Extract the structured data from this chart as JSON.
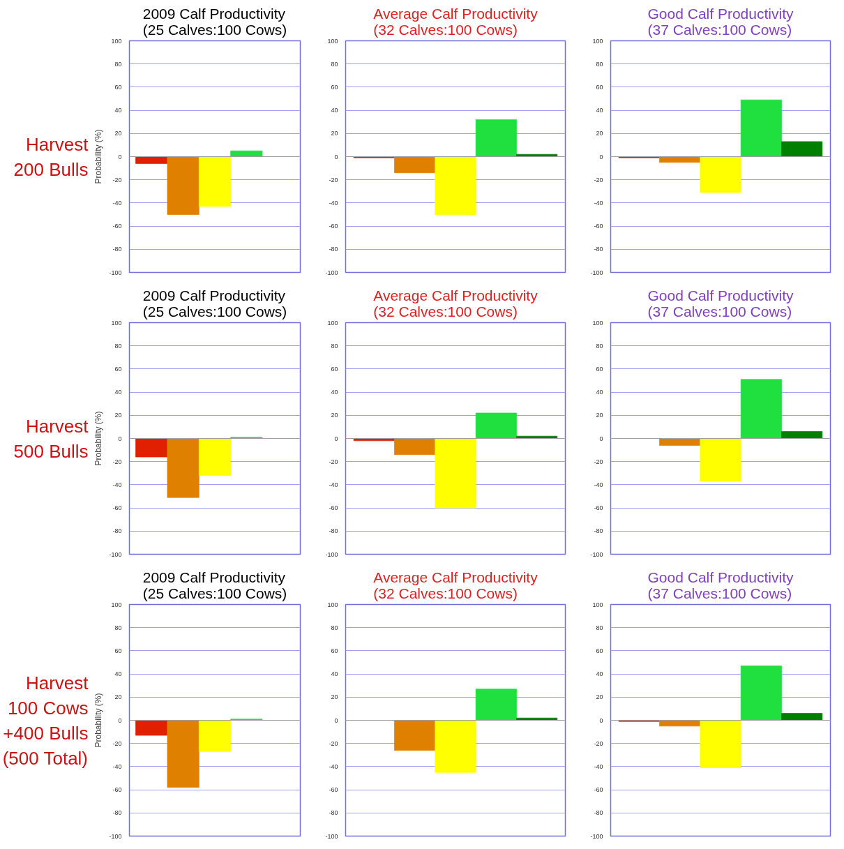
{
  "chart_data": [
    {
      "type": "bar",
      "title": "2009 Calf Productivity\n(25 Calves:100 Cows)",
      "ylabel": "Probability (%)",
      "annotations": [
        "Harvest\n200 Bulls"
      ],
      "categories": [
        null,
        null,
        null,
        null,
        null
      ],
      "values": [
        -6,
        -50,
        -43,
        5,
        0
      ],
      "colors": [
        "#e02000",
        "#e08000",
        "#ffff00",
        "#20e040",
        "#008000"
      ],
      "ylim": [
        -100,
        100
      ],
      "yticks": [
        -100,
        -80,
        -60,
        -40,
        -20,
        0,
        20,
        40,
        60,
        80,
        100
      ],
      "grid": "y",
      "tick_labels": "y",
      "ref_lines": [
        {
          "axis": "y",
          "value": 0,
          "color": "#a0a0a0"
        }
      ]
    },
    {
      "type": "bar",
      "title": "2009 Calf Productivity\n(25 Calves:100 Cows)",
      "ylabel": "Probability (%)",
      "annotations": [
        "Harvest\n500 Bulls"
      ],
      "categories": [
        null,
        null,
        null,
        null,
        null
      ],
      "values": [
        -16,
        -51,
        -32,
        1,
        0
      ],
      "colors": [
        "#e02000",
        "#e08000",
        "#ffff00",
        "#20e040",
        "#008000"
      ],
      "ylim": [
        -100,
        100
      ],
      "yticks": [
        -100,
        -80,
        -60,
        -40,
        -20,
        0,
        20,
        40,
        60,
        80,
        100
      ],
      "grid": "y",
      "tick_labels": "y",
      "ref_lines": [
        {
          "axis": "y",
          "value": 0,
          "color": "#a0a0a0"
        }
      ]
    },
    {
      "type": "bar",
      "title": "2009 Calf Productivity\n(25 Calves:100 Cows)",
      "ylabel": "Probability (%)",
      "annotations": [
        "Harvest\n100 Cows\n+400 Bulls\n(500 Total)"
      ],
      "categories": [
        null,
        null,
        null,
        null,
        null
      ],
      "values": [
        -13,
        -58,
        -27,
        1,
        0
      ],
      "colors": [
        "#e02000",
        "#e08000",
        "#ffff00",
        "#20e040",
        "#008000"
      ],
      "ylim": [
        -100,
        100
      ],
      "yticks": [
        -100,
        -80,
        -60,
        -40,
        -20,
        0,
        20,
        40,
        60,
        80,
        100
      ],
      "grid": "y",
      "tick_labels": "y",
      "ref_lines": [
        {
          "axis": "y",
          "value": 0,
          "color": "#a0a0a0"
        }
      ]
    },
    {
      "type": "bar",
      "title": "Average Calf Productivity\n(32 Calves:100 Cows)",
      "categories": [
        null,
        null,
        null,
        null,
        null
      ],
      "values": [
        -1,
        -14,
        -50,
        32,
        2
      ],
      "colors": [
        "#e02000",
        "#e08000",
        "#ffff00",
        "#20e040",
        "#008000"
      ],
      "ylim": [
        -100,
        100
      ],
      "yticks": [
        -100,
        -80,
        -60,
        -40,
        -20,
        0,
        20,
        40,
        60,
        80,
        100
      ],
      "grid": "y",
      "tick_labels": "y",
      "ref_lines": [
        {
          "axis": "y",
          "value": 0,
          "color": "#a0a0a0"
        }
      ]
    },
    {
      "type": "bar",
      "title": "Average Calf Productivity\n(32 Calves:100 Cows)",
      "categories": [
        null,
        null,
        null,
        null,
        null
      ],
      "values": [
        -2,
        -14,
        -60,
        22,
        2
      ],
      "colors": [
        "#e02000",
        "#e08000",
        "#ffff00",
        "#20e040",
        "#008000"
      ],
      "ylim": [
        -100,
        100
      ],
      "yticks": [
        -100,
        -80,
        -60,
        -40,
        -20,
        0,
        20,
        40,
        60,
        80,
        100
      ],
      "grid": "y",
      "tick_labels": "y",
      "ref_lines": [
        {
          "axis": "y",
          "value": 0,
          "color": "#a0a0a0"
        }
      ]
    },
    {
      "type": "bar",
      "title": "Average Calf Productivity\n(32 Calves:100 Cows)",
      "categories": [
        null,
        null,
        null,
        null,
        null
      ],
      "values": [
        0,
        -26,
        -45,
        27,
        2
      ],
      "colors": [
        "#e02000",
        "#e08000",
        "#ffff00",
        "#20e040",
        "#008000"
      ],
      "ylim": [
        -100,
        100
      ],
      "yticks": [
        -100,
        -80,
        -60,
        -40,
        -20,
        0,
        20,
        40,
        60,
        80,
        100
      ],
      "grid": "y",
      "tick_labels": "y",
      "ref_lines": [
        {
          "axis": "y",
          "value": 0,
          "color": "#a0a0a0"
        }
      ]
    },
    {
      "type": "bar",
      "title": "Good Calf Productivity\n(37 Calves:100 Cows)",
      "categories": [
        null,
        null,
        null,
        null,
        null
      ],
      "values": [
        -1,
        -5,
        -31,
        49,
        13
      ],
      "colors": [
        "#e02000",
        "#e08000",
        "#ffff00",
        "#20e040",
        "#008000"
      ],
      "ylim": [
        -100,
        100
      ],
      "yticks": [
        -100,
        -80,
        -60,
        -40,
        -20,
        0,
        20,
        40,
        60,
        80,
        100
      ],
      "grid": "y",
      "tick_labels": "y",
      "ref_lines": [
        {
          "axis": "y",
          "value": 0,
          "color": "#a0a0a0"
        }
      ]
    },
    {
      "type": "bar",
      "title": "Good Calf Productivity\n(37 Calves:100 Cows)",
      "categories": [
        null,
        null,
        null,
        null,
        null
      ],
      "values": [
        0,
        -6,
        -37,
        51,
        6
      ],
      "colors": [
        "#e02000",
        "#e08000",
        "#ffff00",
        "#20e040",
        "#008000"
      ],
      "ylim": [
        -100,
        100
      ],
      "yticks": [
        -100,
        -80,
        -60,
        -40,
        -20,
        0,
        20,
        40,
        60,
        80,
        100
      ],
      "grid": "y",
      "tick_labels": "y",
      "ref_lines": [
        {
          "axis": "y",
          "value": 0,
          "color": "#a0a0a0"
        }
      ]
    },
    {
      "type": "bar",
      "title": "Good Calf Productivity\n(37 Calves:100 Cows)",
      "categories": [
        null,
        null,
        null,
        null,
        null
      ],
      "values": [
        -1,
        -5,
        -41,
        47,
        6
      ],
      "colors": [
        "#e02000",
        "#e08000",
        "#ffff00",
        "#20e040",
        "#008000"
      ],
      "ylim": [
        -100,
        100
      ],
      "yticks": [
        -100,
        -80,
        -60,
        -40,
        -20,
        0,
        20,
        40,
        60,
        80,
        100
      ],
      "grid": "y",
      "tick_labels": "y",
      "ref_lines": [
        {
          "axis": "y",
          "value": 0,
          "color": "#a0a0a0"
        }
      ]
    }
  ]
}
